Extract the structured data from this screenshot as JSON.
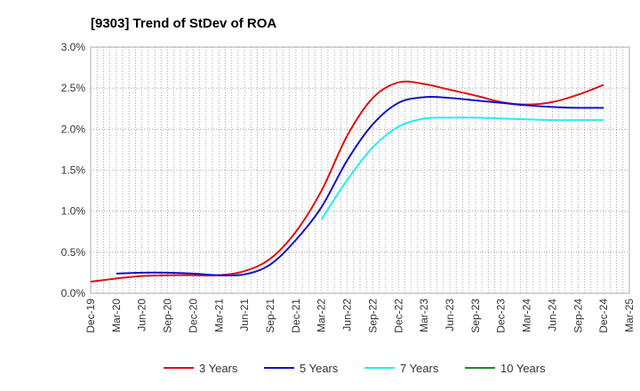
{
  "chart_data": {
    "type": "line",
    "title": "[9303]  Trend of StDev of ROA",
    "xlabel": "",
    "ylabel": "",
    "ylim": [
      0,
      3.0
    ],
    "yticks": [
      0,
      0.5,
      1.0,
      1.5,
      2.0,
      2.5,
      3.0
    ],
    "ytick_labels": [
      "0.0%",
      "0.5%",
      "1.0%",
      "1.5%",
      "2.0%",
      "2.5%",
      "3.0%"
    ],
    "xticks": [
      "Dec-19",
      "Mar-20",
      "Jun-20",
      "Sep-20",
      "Dec-20",
      "Mar-21",
      "Jun-21",
      "Sep-21",
      "Dec-21",
      "Mar-22",
      "Jun-22",
      "Sep-22",
      "Dec-22",
      "Mar-23",
      "Jun-23",
      "Sep-23",
      "Dec-23",
      "Mar-24",
      "Jun-24",
      "Sep-24",
      "Dec-24",
      "Mar-25"
    ],
    "grid": true,
    "legend_position": "bottom",
    "series": [
      {
        "name": "3 Years",
        "color": "#dd1111",
        "points": [
          [
            "Dec-19",
            0.14
          ],
          [
            "Mar-20",
            0.18
          ],
          [
            "Jun-20",
            0.21
          ],
          [
            "Sep-20",
            0.22
          ],
          [
            "Dec-20",
            0.22
          ],
          [
            "Mar-21",
            0.22
          ],
          [
            "Jun-21",
            0.27
          ],
          [
            "Sep-21",
            0.42
          ],
          [
            "Dec-21",
            0.75
          ],
          [
            "Mar-22",
            1.25
          ],
          [
            "Jun-22",
            1.92
          ],
          [
            "Sep-22",
            2.38
          ],
          [
            "Dec-22",
            2.57
          ],
          [
            "Mar-23",
            2.55
          ],
          [
            "Jun-23",
            2.48
          ],
          [
            "Sep-23",
            2.41
          ],
          [
            "Dec-23",
            2.33
          ],
          [
            "Mar-24",
            2.3
          ],
          [
            "Jun-24",
            2.33
          ],
          [
            "Sep-24",
            2.42
          ],
          [
            "Dec-24",
            2.54
          ]
        ]
      },
      {
        "name": "5 Years",
        "color": "#1111cc",
        "points": [
          [
            "Mar-20",
            0.24
          ],
          [
            "Jun-20",
            0.25
          ],
          [
            "Sep-20",
            0.25
          ],
          [
            "Dec-20",
            0.24
          ],
          [
            "Mar-21",
            0.22
          ],
          [
            "Jun-21",
            0.23
          ],
          [
            "Sep-21",
            0.35
          ],
          [
            "Dec-21",
            0.65
          ],
          [
            "Mar-22",
            1.05
          ],
          [
            "Jun-22",
            1.62
          ],
          [
            "Sep-22",
            2.06
          ],
          [
            "Dec-22",
            2.32
          ],
          [
            "Mar-23",
            2.39
          ],
          [
            "Jun-23",
            2.38
          ],
          [
            "Sep-23",
            2.35
          ],
          [
            "Dec-23",
            2.32
          ],
          [
            "Mar-24",
            2.29
          ],
          [
            "Jun-24",
            2.27
          ],
          [
            "Sep-24",
            2.26
          ],
          [
            "Dec-24",
            2.26
          ]
        ]
      },
      {
        "name": "7 Years",
        "color": "#22eeee",
        "points": [
          [
            "Mar-22",
            0.9
          ],
          [
            "Jun-22",
            1.38
          ],
          [
            "Sep-22",
            1.78
          ],
          [
            "Dec-22",
            2.03
          ],
          [
            "Mar-23",
            2.13
          ],
          [
            "Jun-23",
            2.14
          ],
          [
            "Sep-23",
            2.14
          ],
          [
            "Dec-23",
            2.13
          ],
          [
            "Mar-24",
            2.12
          ],
          [
            "Jun-24",
            2.11
          ],
          [
            "Sep-24",
            2.11
          ],
          [
            "Dec-24",
            2.11
          ]
        ]
      },
      {
        "name": "10 Years",
        "color": "#228822",
        "points": []
      }
    ]
  }
}
